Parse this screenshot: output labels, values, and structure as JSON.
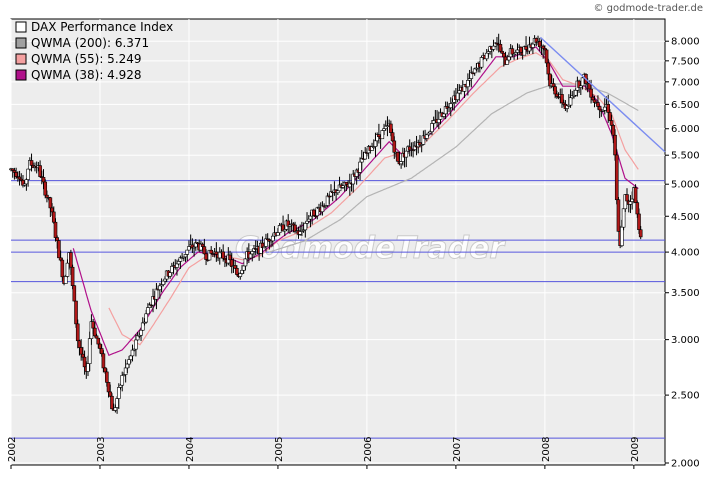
{
  "source_label": "© godmode-trader.de",
  "watermark": "GodmodeTrader",
  "colors": {
    "plot_bg": "#ededed",
    "grid": "#ffffff",
    "hline": "#5555dd",
    "trend": "#7b8cf0",
    "candle_up": "#ffffff",
    "candle_down": "#b01818",
    "wick": "#000000",
    "ma200": "#b4b4b4",
    "ma55": "#f4a0a0",
    "ma38": "#b0108a"
  },
  "chart_data": {
    "type": "candlestick",
    "y_scale": "log",
    "ylim": [
      2000,
      8300
    ],
    "xlim": [
      2002.0,
      2009.35
    ],
    "x_ticks": [
      {
        "label": "2002",
        "value": 2002.0
      },
      {
        "label": "2003",
        "value": 2003.0
      },
      {
        "label": "2004",
        "value": 2004.0
      },
      {
        "label": "2005",
        "value": 2005.0
      },
      {
        "label": "2006",
        "value": 2006.0
      },
      {
        "label": "2007",
        "value": 2007.0
      },
      {
        "label": "2008",
        "value": 2008.0
      },
      {
        "label": "2009",
        "value": 2009.0
      }
    ],
    "y_ticks": [
      {
        "label": "2.000",
        "value": 2000
      },
      {
        "label": "2.500",
        "value": 2500
      },
      {
        "label": "3.000",
        "value": 3000
      },
      {
        "label": "3.500",
        "value": 3500
      },
      {
        "label": "4.000",
        "value": 4000
      },
      {
        "label": "4.500",
        "value": 4500
      },
      {
        "label": "5.000",
        "value": 5000
      },
      {
        "label": "5.500",
        "value": 5500
      },
      {
        "label": "6.000",
        "value": 6000
      },
      {
        "label": "6.500",
        "value": 6500
      },
      {
        "label": "7.000",
        "value": 7000
      },
      {
        "label": "7.500",
        "value": 7500
      },
      {
        "label": "8.000",
        "value": 8000
      }
    ],
    "legend": [
      {
        "label": "DAX Performance Index",
        "color": "#ffffff"
      },
      {
        "label": "QWMA (200): 6.371",
        "color": "#a0a0a0"
      },
      {
        "label": "QWMA (55): 5.249",
        "color": "#f4a0a0"
      },
      {
        "label": "QWMA (38): 4.928",
        "color": "#b0108a"
      }
    ],
    "horizontal_lines": [
      5060,
      4160,
      4000,
      3630,
      2170
    ],
    "trendline": [
      [
        2007.95,
        8100
      ],
      [
        2009.35,
        5560
      ]
    ],
    "price_path": [
      [
        2002.0,
        5250
      ],
      [
        2002.1,
        5150
      ],
      [
        2002.15,
        4900
      ],
      [
        2002.2,
        5350
      ],
      [
        2002.3,
        5300
      ],
      [
        2002.45,
        4600
      ],
      [
        2002.6,
        3600
      ],
      [
        2002.65,
        4050
      ],
      [
        2002.75,
        3000
      ],
      [
        2002.85,
        2650
      ],
      [
        2002.9,
        3200
      ],
      [
        2003.0,
        2900
      ],
      [
        2003.1,
        2550
      ],
      [
        2003.15,
        2350
      ],
      [
        2003.25,
        2650
      ],
      [
        2003.4,
        2950
      ],
      [
        2003.55,
        3350
      ],
      [
        2003.7,
        3650
      ],
      [
        2003.9,
        3900
      ],
      [
        2004.0,
        4050
      ],
      [
        2004.1,
        4100
      ],
      [
        2004.2,
        3950
      ],
      [
        2004.3,
        4000
      ],
      [
        2004.45,
        3900
      ],
      [
        2004.55,
        3700
      ],
      [
        2004.65,
        3950
      ],
      [
        2004.8,
        4050
      ],
      [
        2004.95,
        4250
      ],
      [
        2005.1,
        4380
      ],
      [
        2005.25,
        4250
      ],
      [
        2005.35,
        4500
      ],
      [
        2005.5,
        4650
      ],
      [
        2005.65,
        4900
      ],
      [
        2005.8,
        5000
      ],
      [
        2005.95,
        5400
      ],
      [
        2006.1,
        5800
      ],
      [
        2006.25,
        6050
      ],
      [
        2006.35,
        5350
      ],
      [
        2006.45,
        5600
      ],
      [
        2006.6,
        5750
      ],
      [
        2006.8,
        6200
      ],
      [
        2006.95,
        6600
      ],
      [
        2007.1,
        6900
      ],
      [
        2007.2,
        7200
      ],
      [
        2007.35,
        7700
      ],
      [
        2007.45,
        8050
      ],
      [
        2007.55,
        7450
      ],
      [
        2007.6,
        7700
      ],
      [
        2007.75,
        7750
      ],
      [
        2007.9,
        8050
      ],
      [
        2008.0,
        7800
      ],
      [
        2008.05,
        7000
      ],
      [
        2008.15,
        6700
      ],
      [
        2008.25,
        6400
      ],
      [
        2008.35,
        6900
      ],
      [
        2008.45,
        7100
      ],
      [
        2008.55,
        6600
      ],
      [
        2008.65,
        6400
      ],
      [
        2008.7,
        6500
      ],
      [
        2008.78,
        5800
      ],
      [
        2008.82,
        4300
      ],
      [
        2008.85,
        4100
      ],
      [
        2008.9,
        4800
      ],
      [
        2008.95,
        4700
      ],
      [
        2009.0,
        4900
      ],
      [
        2009.05,
        4400
      ],
      [
        2009.08,
        4250
      ]
    ],
    "qwma_55_path": [
      [
        2003.1,
        3330
      ],
      [
        2003.25,
        3050
      ],
      [
        2003.45,
        2950
      ],
      [
        2003.6,
        3150
      ],
      [
        2003.8,
        3450
      ],
      [
        2004.0,
        3800
      ],
      [
        2004.2,
        3950
      ],
      [
        2004.4,
        3950
      ],
      [
        2004.6,
        3900
      ],
      [
        2004.8,
        3950
      ],
      [
        2005.0,
        4150
      ],
      [
        2005.3,
        4300
      ],
      [
        2005.6,
        4550
      ],
      [
        2005.9,
        4950
      ],
      [
        2006.2,
        5450
      ],
      [
        2006.4,
        5550
      ],
      [
        2006.6,
        5650
      ],
      [
        2006.9,
        6150
      ],
      [
        2007.2,
        6750
      ],
      [
        2007.5,
        7350
      ],
      [
        2007.7,
        7550
      ],
      [
        2007.9,
        7700
      ],
      [
        2008.05,
        7500
      ],
      [
        2008.2,
        7050
      ],
      [
        2008.4,
        6900
      ],
      [
        2008.6,
        6650
      ],
      [
        2008.75,
        6300
      ],
      [
        2008.9,
        5600
      ],
      [
        2009.05,
        5249
      ]
    ],
    "qwma_38_path": [
      [
        2002.7,
        4050
      ],
      [
        2002.9,
        3300
      ],
      [
        2003.1,
        2850
      ],
      [
        2003.25,
        2900
      ],
      [
        2003.45,
        3100
      ],
      [
        2003.7,
        3500
      ],
      [
        2003.9,
        3800
      ],
      [
        2004.1,
        4000
      ],
      [
        2004.4,
        3950
      ],
      [
        2004.6,
        3850
      ],
      [
        2004.8,
        3980
      ],
      [
        2005.1,
        4250
      ],
      [
        2005.4,
        4450
      ],
      [
        2005.7,
        4800
      ],
      [
        2006.0,
        5300
      ],
      [
        2006.25,
        5750
      ],
      [
        2006.4,
        5500
      ],
      [
        2006.6,
        5700
      ],
      [
        2006.9,
        6250
      ],
      [
        2007.2,
        6900
      ],
      [
        2007.45,
        7600
      ],
      [
        2007.65,
        7600
      ],
      [
        2007.9,
        7850
      ],
      [
        2008.05,
        7450
      ],
      [
        2008.2,
        6900
      ],
      [
        2008.45,
        6900
      ],
      [
        2008.6,
        6550
      ],
      [
        2008.75,
        5900
      ],
      [
        2008.9,
        5100
      ],
      [
        2009.05,
        4928
      ]
    ],
    "qwma_200_path": [
      [
        2004.9,
        4000
      ],
      [
        2005.3,
        4150
      ],
      [
        2005.7,
        4450
      ],
      [
        2006.0,
        4800
      ],
      [
        2006.5,
        5100
      ],
      [
        2007.0,
        5650
      ],
      [
        2007.4,
        6300
      ],
      [
        2007.8,
        6750
      ],
      [
        2008.1,
        6950
      ],
      [
        2008.4,
        6950
      ],
      [
        2008.7,
        6750
      ],
      [
        2009.05,
        6371
      ]
    ]
  }
}
